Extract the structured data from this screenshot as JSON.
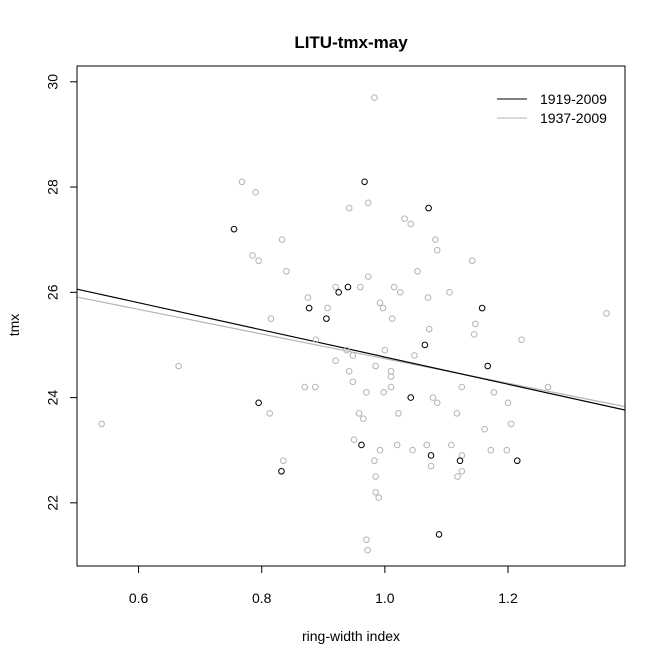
{
  "chart_data": {
    "type": "scatter",
    "title": "LITU-tmx-may",
    "xlabel": "ring-width index",
    "ylabel": "tmx",
    "xlim": [
      0.5,
      1.39
    ],
    "ylim": [
      20.8,
      30.3
    ],
    "xticks": [
      0.6,
      0.8,
      1.0,
      1.2
    ],
    "xtick_labels": [
      "0.6",
      "0.8",
      "1.0",
      "1.2"
    ],
    "yticks": [
      22,
      24,
      26,
      28,
      30
    ],
    "ytick_labels": [
      "22",
      "24",
      "26",
      "28",
      "30"
    ],
    "grid": false,
    "legend_position": "top-right",
    "series": [
      {
        "name": "1919-2009",
        "color": "#000000",
        "fit_line": {
          "slope": -2.58,
          "intercept": 27.35
        },
        "points": [
          [
            0.755,
            27.2
          ],
          [
            0.967,
            28.1
          ],
          [
            1.071,
            27.6
          ],
          [
            0.877,
            25.7
          ],
          [
            0.905,
            25.5
          ],
          [
            0.925,
            26.0
          ],
          [
            0.94,
            26.1
          ],
          [
            1.065,
            25.0
          ],
          [
            1.158,
            25.7
          ],
          [
            1.167,
            24.6
          ],
          [
            0.795,
            23.9
          ],
          [
            1.042,
            24.0
          ],
          [
            0.962,
            23.1
          ],
          [
            0.832,
            22.6
          ],
          [
            1.075,
            22.9
          ],
          [
            1.122,
            22.8
          ],
          [
            1.215,
            22.8
          ],
          [
            1.088,
            21.4
          ]
        ]
      },
      {
        "name": "1937-2009",
        "color": "#b4b4b4",
        "fit_line": {
          "slope": -2.34,
          "intercept": 27.08
        },
        "points": [
          [
            0.983,
            29.7
          ],
          [
            0.768,
            28.1
          ],
          [
            0.79,
            27.9
          ],
          [
            0.973,
            27.7
          ],
          [
            0.942,
            27.6
          ],
          [
            1.032,
            27.4
          ],
          [
            1.042,
            27.3
          ],
          [
            0.833,
            27.0
          ],
          [
            1.082,
            27.0
          ],
          [
            1.085,
            26.8
          ],
          [
            0.785,
            26.7
          ],
          [
            0.795,
            26.6
          ],
          [
            1.142,
            26.6
          ],
          [
            0.84,
            26.4
          ],
          [
            1.053,
            26.4
          ],
          [
            0.973,
            26.3
          ],
          [
            1.015,
            26.1
          ],
          [
            0.92,
            26.1
          ],
          [
            0.96,
            26.1
          ],
          [
            1.025,
            26.0
          ],
          [
            1.105,
            26.0
          ],
          [
            0.875,
            25.9
          ],
          [
            0.992,
            25.8
          ],
          [
            1.07,
            25.9
          ],
          [
            0.815,
            25.5
          ],
          [
            0.907,
            25.7
          ],
          [
            1.012,
            25.5
          ],
          [
            0.997,
            25.7
          ],
          [
            1.147,
            25.4
          ],
          [
            1.072,
            25.3
          ],
          [
            1.145,
            25.2
          ],
          [
            0.888,
            25.1
          ],
          [
            1.222,
            25.1
          ],
          [
            0.938,
            24.9
          ],
          [
            0.948,
            24.8
          ],
          [
            1.0,
            24.9
          ],
          [
            1.048,
            24.8
          ],
          [
            0.665,
            24.6
          ],
          [
            0.92,
            24.7
          ],
          [
            0.985,
            24.6
          ],
          [
            0.942,
            24.5
          ],
          [
            1.01,
            24.5
          ],
          [
            0.948,
            24.3
          ],
          [
            1.01,
            24.4
          ],
          [
            1.125,
            24.2
          ],
          [
            0.87,
            24.2
          ],
          [
            0.887,
            24.2
          ],
          [
            1.01,
            24.2
          ],
          [
            1.265,
            24.2
          ],
          [
            0.97,
            24.1
          ],
          [
            0.998,
            24.1
          ],
          [
            1.177,
            24.1
          ],
          [
            1.078,
            24.0
          ],
          [
            1.085,
            23.9
          ],
          [
            1.2,
            23.9
          ],
          [
            0.958,
            23.7
          ],
          [
            1.022,
            23.7
          ],
          [
            1.117,
            23.7
          ],
          [
            0.965,
            23.6
          ],
          [
            0.813,
            23.7
          ],
          [
            0.54,
            23.5
          ],
          [
            1.205,
            23.5
          ],
          [
            1.162,
            23.4
          ],
          [
            0.95,
            23.2
          ],
          [
            1.02,
            23.1
          ],
          [
            1.068,
            23.1
          ],
          [
            1.108,
            23.1
          ],
          [
            0.992,
            23.0
          ],
          [
            1.045,
            23.0
          ],
          [
            1.198,
            23.0
          ],
          [
            1.172,
            23.0
          ],
          [
            0.983,
            22.8
          ],
          [
            0.835,
            22.8
          ],
          [
            1.075,
            22.7
          ],
          [
            1.125,
            22.6
          ],
          [
            1.118,
            22.5
          ],
          [
            0.985,
            22.5
          ],
          [
            0.985,
            22.2
          ],
          [
            0.99,
            22.1
          ],
          [
            0.97,
            21.3
          ],
          [
            0.972,
            21.1
          ],
          [
            1.36,
            25.6
          ],
          [
            1.125,
            22.9
          ]
        ]
      }
    ]
  }
}
